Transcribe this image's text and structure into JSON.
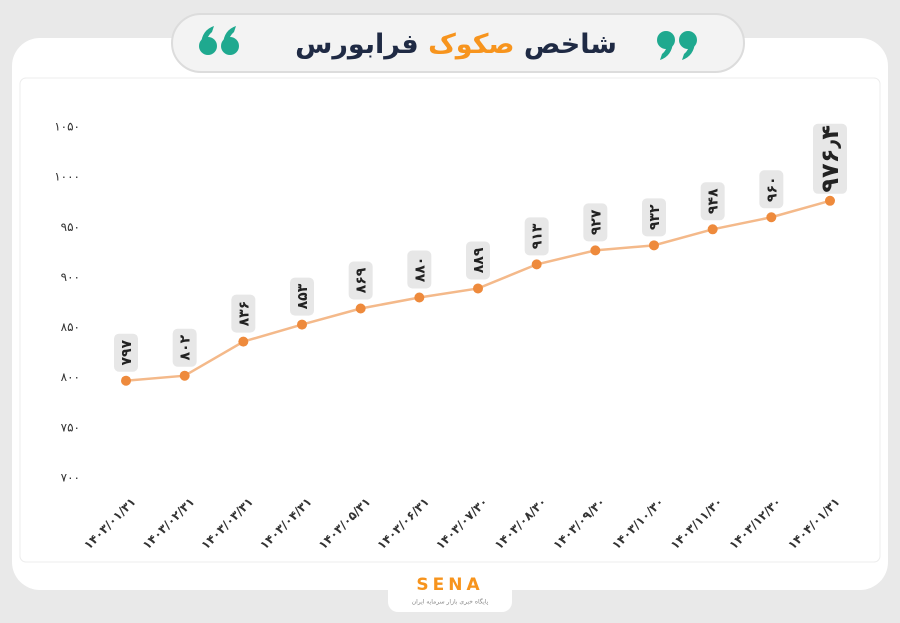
{
  "chart_data": {
    "type": "line",
    "title": {
      "words": [
        "شاخص",
        "صکوک",
        "فرابورس"
      ],
      "highlight": 1,
      "highlight_color": "#f7941d"
    },
    "categories": [
      "۱۴۰۳/۰۱/۳۱",
      "۱۴۰۳/۰۲/۳۱",
      "۱۴۰۳/۰۳/۳۱",
      "۱۴۰۳/۰۴/۳۱",
      "۱۴۰۳/۰۵/۳۱",
      "۱۴۰۳/۰۶/۳۱",
      "۱۴۰۳/۰۷/۳۰",
      "۱۴۰۳/۰۸/۳۰",
      "۱۴۰۳/۰۹/۳۰",
      "۱۴۰۳/۱۰/۳۰",
      "۱۴۰۳/۱۱/۳۰",
      "۱۴۰۳/۱۲/۳۰",
      "۱۴۰۴/۰۱/۳۱"
    ],
    "values": [
      797,
      802,
      836,
      853,
      869,
      880,
      889,
      913,
      927,
      932,
      948,
      960,
      976.4
    ],
    "value_labels": [
      "۷۹۷",
      "۸۰۲",
      "۸۳۶",
      "۸۵۳",
      "۸۶۹",
      "۸۸۰",
      "۸۸۹",
      "۹۱۳",
      "۹۲۷",
      "۹۳۲",
      "۹۴۸",
      "۹۶۰",
      "۹۷۶٫۴"
    ],
    "color": "#f4b98a",
    "marker_color": "#ee8a3c",
    "ylim": [
      700,
      1050
    ],
    "yticks": [
      {
        "value": 700,
        "label": "۷۰۰"
      },
      {
        "value": 750,
        "label": "۷۵۰"
      },
      {
        "value": 800,
        "label": "۸۰۰"
      },
      {
        "value": 850,
        "label": "۸۵۰"
      },
      {
        "value": 900,
        "label": "۹۰۰"
      },
      {
        "value": 950,
        "label": "۹۵۰"
      },
      {
        "value": 1000,
        "label": "۱۰۰۰"
      },
      {
        "value": 1050,
        "label": "۱۰۵۰"
      }
    ],
    "logo": {
      "name": "SENA",
      "tagline": "پایگاه خبری بازار سرمایه ایران"
    }
  }
}
